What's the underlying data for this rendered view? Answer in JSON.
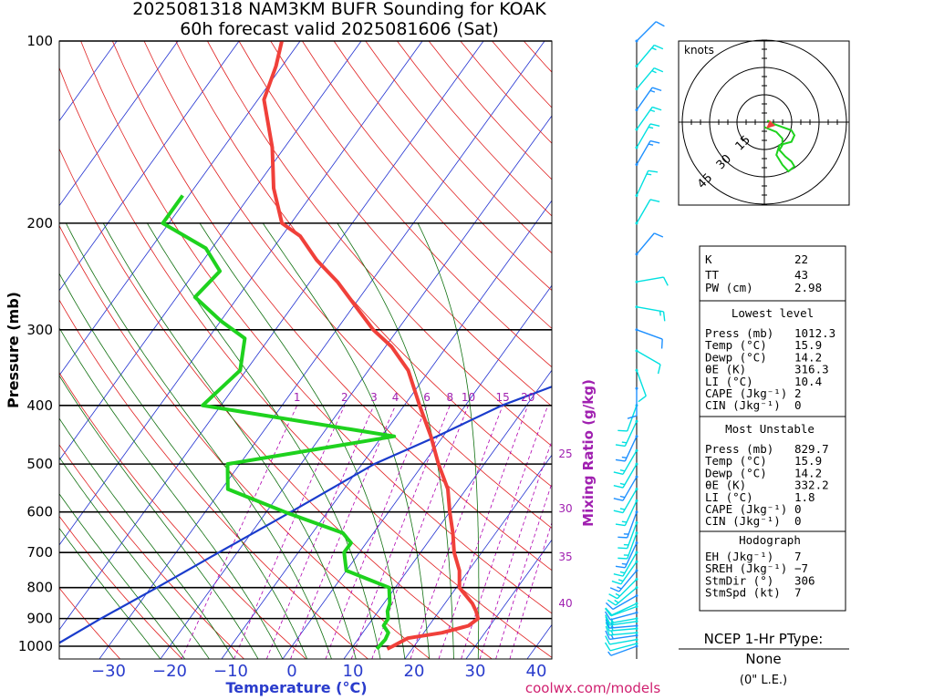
{
  "title_line1": "2025081318 NAM3KM BUFR Sounding for KOAK",
  "title_line2": "60h forecast valid 2025081606 (Sat)",
  "axis": {
    "ylabel": "Pressure (mb)",
    "xlabel": "Temperature (°C)",
    "mixing_label": "Mixing Ratio (g/kg)",
    "pressure_ticks": [
      "100",
      "200",
      "300",
      "400",
      "500",
      "600",
      "700",
      "800",
      "900",
      "1000"
    ],
    "temp_ticks": [
      "−30",
      "−20",
      "−10",
      "0",
      "10",
      "20",
      "30",
      "40"
    ],
    "mixing_top_labels": [
      "1",
      "2",
      "3",
      "4",
      "6",
      "8",
      "10",
      "15",
      "20"
    ],
    "mixing_side_labels": [
      "25",
      "30",
      "35",
      "40"
    ]
  },
  "hodograph": {
    "units_label": "knots",
    "ring_labels": [
      "15",
      "30",
      "45"
    ]
  },
  "stats": {
    "k_label": "K",
    "k_value": "22",
    "tt_label": "TT",
    "tt_value": "43",
    "pw_label": "PW (cm)",
    "pw_value": "2.98",
    "lowest_header": "Lowest level",
    "lowest": [
      {
        "label": "Press (mb)",
        "value": "1012.3"
      },
      {
        "label": "Temp (°C)",
        "value": "15.9"
      },
      {
        "label": "Dewp (°C)",
        "value": "14.2"
      },
      {
        "label": "θE (K)",
        "value": "316.3"
      },
      {
        "label": "LI (°C)",
        "value": "10.4"
      },
      {
        "label": "CAPE (Jkg⁻¹)",
        "value": "2"
      },
      {
        "label": "CIN (Jkg⁻¹)",
        "value": "0"
      }
    ],
    "unstable_header": "Most Unstable",
    "unstable": [
      {
        "label": "Press (mb)",
        "value": "829.7"
      },
      {
        "label": "Temp (°C)",
        "value": "15.9"
      },
      {
        "label": "Dewp (°C)",
        "value": "14.2"
      },
      {
        "label": "θE (K)",
        "value": "332.2"
      },
      {
        "label": "LI (°C)",
        "value": "1.8"
      },
      {
        "label": "CAPE (Jkg⁻¹)",
        "value": "0"
      },
      {
        "label": "CIN (Jkg⁻¹)",
        "value": "0"
      }
    ],
    "hodo_header": "Hodograph",
    "hodo": [
      {
        "label": "EH (Jkg⁻¹)",
        "value": "7"
      },
      {
        "label": "SREH (Jkg⁻¹)",
        "value": "−7"
      },
      {
        "label": "StmDir (°)",
        "value": "306"
      },
      {
        "label": "StmSpd (kt)",
        "value": "7"
      }
    ]
  },
  "ptype": {
    "header": "NCEP 1-Hr PType:",
    "value": "None",
    "sub": "(0\" L.E.)"
  },
  "credit": "coolwx.com/models",
  "colors": {
    "temp": "#f0403a",
    "dewp": "#1ed21e",
    "isotherm": "#2030d0",
    "adiabat": "#e02020",
    "moist": "#107010",
    "mixing": "#b000b0",
    "parcel": "#1a3ccc",
    "barb_dark": "#1e90ff",
    "barb_light": "#00e0e0"
  },
  "chart_data": {
    "type": "line",
    "title": "2025081318 NAM3KM BUFR Sounding for KOAK",
    "subtitle": "60h forecast valid 2025081606 (Sat)",
    "xlabel": "Temperature (°C)",
    "ylabel": "Pressure (mb)",
    "xlim": [
      -40,
      40
    ],
    "ylim": [
      1050,
      100
    ],
    "y_scale": "log",
    "series": [
      {
        "values": [
          [
            1010,
            15.9
          ],
          [
            1000,
            16.5
          ],
          [
            970,
            18
          ],
          [
            950,
            23
          ],
          [
            925,
            26.5
          ],
          [
            900,
            27.2
          ],
          [
            875,
            26
          ],
          [
            850,
            24.5
          ],
          [
            800,
            20.5
          ],
          [
            750,
            18.5
          ],
          [
            700,
            15.5
          ],
          [
            650,
            13
          ],
          [
            600,
            10
          ],
          [
            550,
            7
          ],
          [
            500,
            2.5
          ],
          [
            450,
            -2
          ],
          [
            400,
            -7.5
          ],
          [
            350,
            -13.5
          ],
          [
            320,
            -19
          ],
          [
            300,
            -24
          ],
          [
            275,
            -29.5
          ],
          [
            250,
            -35.5
          ],
          [
            230,
            -41.5
          ],
          [
            210,
            -47
          ],
          [
            200,
            -51.5
          ],
          [
            175,
            -57
          ],
          [
            150,
            -62
          ],
          [
            125,
            -69
          ],
          [
            110,
            -71
          ],
          [
            100,
            -73
          ]
        ]
      },
      {
        "values": [
          [
            1010,
            14.2
          ],
          [
            1000,
            14.3
          ],
          [
            975,
            14.5
          ],
          [
            950,
            14.2
          ],
          [
            925,
            12.6
          ],
          [
            900,
            12.5
          ],
          [
            875,
            11.5
          ],
          [
            850,
            11
          ],
          [
            800,
            9
          ],
          [
            750,
            0
          ],
          [
            700,
            -2.5
          ],
          [
            675,
            -2.5
          ],
          [
            650,
            -5
          ],
          [
            600,
            -17
          ],
          [
            550,
            -29
          ],
          [
            500,
            -32
          ],
          [
            450,
            -8
          ],
          [
            400,
            -43
          ],
          [
            350,
            -41
          ],
          [
            310,
            -44
          ],
          [
            290,
            -50
          ],
          [
            265,
            -57
          ],
          [
            240,
            -56
          ],
          [
            220,
            -61
          ],
          [
            200,
            -71
          ],
          [
            180,
            -71
          ]
        ]
      }
    ],
    "parcel": [
      [
        1000,
        -39
      ],
      [
        900,
        -34.5
      ],
      [
        800,
        -29
      ],
      [
        700,
        -23
      ],
      [
        600,
        -16
      ],
      [
        500,
        -8
      ],
      [
        450,
        -1
      ],
      [
        400,
        6
      ],
      [
        300,
        30
      ]
    ],
    "wind_barbs": [
      {
        "p": 1000,
        "dir": 250,
        "spd": 7
      },
      {
        "p": 990,
        "dir": 255,
        "spd": 10
      },
      {
        "p": 975,
        "dir": 260,
        "spd": 12
      },
      {
        "p": 960,
        "dir": 262,
        "spd": 14
      },
      {
        "p": 950,
        "dir": 265,
        "spd": 15
      },
      {
        "p": 935,
        "dir": 265,
        "spd": 15
      },
      {
        "p": 925,
        "dir": 265,
        "spd": 15
      },
      {
        "p": 910,
        "dir": 262,
        "spd": 14
      },
      {
        "p": 900,
        "dir": 260,
        "spd": 13
      },
      {
        "p": 880,
        "dir": 255,
        "spd": 12
      },
      {
        "p": 860,
        "dir": 250,
        "spd": 11
      },
      {
        "p": 850,
        "dir": 245,
        "spd": 11
      },
      {
        "p": 825,
        "dir": 240,
        "spd": 12
      },
      {
        "p": 800,
        "dir": 230,
        "spd": 13
      },
      {
        "p": 775,
        "dir": 225,
        "spd": 14
      },
      {
        "p": 750,
        "dir": 220,
        "spd": 15
      },
      {
        "p": 725,
        "dir": 215,
        "spd": 16
      },
      {
        "p": 700,
        "dir": 210,
        "spd": 17
      },
      {
        "p": 675,
        "dir": 205,
        "spd": 17
      },
      {
        "p": 650,
        "dir": 200,
        "spd": 16
      },
      {
        "p": 625,
        "dir": 200,
        "spd": 16
      },
      {
        "p": 600,
        "dir": 200,
        "spd": 17
      },
      {
        "p": 575,
        "dir": 205,
        "spd": 17
      },
      {
        "p": 550,
        "dir": 210,
        "spd": 17
      },
      {
        "p": 525,
        "dir": 210,
        "spd": 16
      },
      {
        "p": 500,
        "dir": 210,
        "spd": 15
      },
      {
        "p": 475,
        "dir": 210,
        "spd": 15
      },
      {
        "p": 450,
        "dir": 205,
        "spd": 15
      },
      {
        "p": 425,
        "dir": 205,
        "spd": 15
      },
      {
        "p": 400,
        "dir": 200,
        "spd": 12
      },
      {
        "p": 375,
        "dir": 180,
        "spd": 10
      },
      {
        "p": 350,
        "dir": 160,
        "spd": 8
      },
      {
        "p": 325,
        "dir": 120,
        "spd": 10
      },
      {
        "p": 300,
        "dir": 110,
        "spd": 12
      },
      {
        "p": 275,
        "dir": 100,
        "spd": 13
      },
      {
        "p": 250,
        "dir": 80,
        "spd": 10
      },
      {
        "p": 225,
        "dir": 40,
        "spd": 8
      },
      {
        "p": 200,
        "dir": 30,
        "spd": 10
      },
      {
        "p": 180,
        "dir": 25,
        "spd": 15
      },
      {
        "p": 160,
        "dir": 30,
        "spd": 17
      },
      {
        "p": 150,
        "dir": 30,
        "spd": 17
      },
      {
        "p": 140,
        "dir": 35,
        "spd": 16
      },
      {
        "p": 130,
        "dir": 35,
        "spd": 15
      },
      {
        "p": 120,
        "dir": 40,
        "spd": 15
      },
      {
        "p": 110,
        "dir": 40,
        "spd": 13
      },
      {
        "p": 100,
        "dir": 45,
        "spd": 12
      }
    ],
    "hodograph_uv": [
      [
        0,
        3
      ],
      [
        4,
        6
      ],
      [
        6,
        10
      ],
      [
        6,
        14
      ],
      [
        5,
        17
      ],
      [
        7,
        21
      ],
      [
        9,
        24
      ],
      [
        10,
        27
      ],
      [
        8,
        30
      ],
      [
        6,
        26
      ],
      [
        4,
        20
      ],
      [
        5,
        14
      ],
      [
        9,
        12
      ],
      [
        10,
        8
      ],
      [
        9,
        5
      ],
      [
        6,
        3
      ],
      [
        3,
        1
      ],
      [
        1,
        -1
      ]
    ]
  }
}
